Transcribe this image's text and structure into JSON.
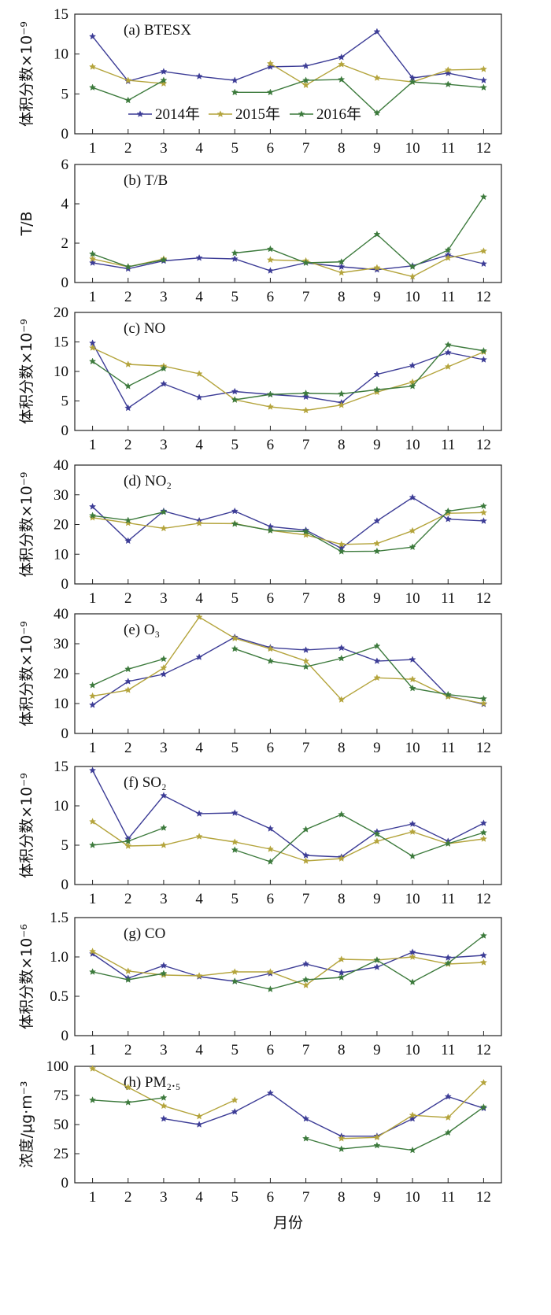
{
  "colors": {
    "2014": "#3c3c96",
    "2015": "#b4a43c",
    "2016": "#3c7a3c"
  },
  "legend": {
    "items": [
      {
        "key": "2014",
        "label": "2014年"
      },
      {
        "key": "2015",
        "label": "2015年"
      },
      {
        "key": "2016",
        "label": "2016年"
      }
    ]
  },
  "xlabel": "月份",
  "chart_data": [
    {
      "type": "line",
      "panel_label": "(a) BTESX",
      "ylabel": "体积分数×10⁻⁹",
      "ylim": [
        0,
        15
      ],
      "yticks": [
        0,
        5,
        10,
        15
      ],
      "x": [
        1,
        2,
        3,
        4,
        5,
        6,
        7,
        8,
        9,
        10,
        11,
        12
      ],
      "series": [
        {
          "name": "2014年",
          "key": "2014",
          "values": [
            12.2,
            6.6,
            7.8,
            7.2,
            6.7,
            8.4,
            8.5,
            9.6,
            12.8,
            7.0,
            7.6,
            6.7
          ]
        },
        {
          "name": "2015年",
          "key": "2015",
          "values": [
            8.4,
            6.7,
            6.3,
            null,
            null,
            8.8,
            6.1,
            8.7,
            7.0,
            6.5,
            8.0,
            8.1
          ]
        },
        {
          "name": "2016年",
          "key": "2016",
          "values": [
            5.8,
            4.2,
            6.7,
            null,
            5.2,
            5.2,
            6.7,
            6.8,
            2.6,
            6.5,
            6.2,
            5.8
          ]
        }
      ]
    },
    {
      "type": "line",
      "panel_label": "(b) T/B",
      "ylabel": "T/B",
      "ylim": [
        0,
        6
      ],
      "yticks": [
        0,
        2,
        4,
        6
      ],
      "x": [
        1,
        2,
        3,
        4,
        5,
        6,
        7,
        8,
        9,
        10,
        11,
        12
      ],
      "series": [
        {
          "name": "2014年",
          "key": "2014",
          "values": [
            1.0,
            0.7,
            1.1,
            1.25,
            1.2,
            0.6,
            1.0,
            0.8,
            0.65,
            0.85,
            1.4,
            0.95
          ]
        },
        {
          "name": "2015年",
          "key": "2015",
          "values": [
            1.2,
            0.8,
            1.2,
            null,
            null,
            1.15,
            1.1,
            0.5,
            0.75,
            0.3,
            1.25,
            1.6
          ]
        },
        {
          "name": "2016年",
          "key": "2016",
          "values": [
            1.45,
            0.8,
            1.15,
            null,
            1.5,
            1.7,
            1.0,
            1.05,
            2.45,
            0.8,
            1.65,
            4.35
          ]
        }
      ]
    },
    {
      "type": "line",
      "panel_label": "(c) NO",
      "ylabel": "体积分数×10⁻⁹",
      "ylim": [
        0,
        20
      ],
      "yticks": [
        0,
        5,
        10,
        15,
        20
      ],
      "x": [
        1,
        2,
        3,
        4,
        5,
        6,
        7,
        8,
        9,
        10,
        11,
        12
      ],
      "series": [
        {
          "name": "2014年",
          "key": "2014",
          "values": [
            14.8,
            3.8,
            7.9,
            5.6,
            6.6,
            6.1,
            5.7,
            4.7,
            9.5,
            11.0,
            13.2,
            12.0
          ]
        },
        {
          "name": "2015年",
          "key": "2015",
          "values": [
            14.0,
            11.2,
            10.9,
            9.6,
            5.2,
            4.0,
            3.4,
            4.3,
            6.5,
            8.2,
            10.8,
            13.3
          ]
        },
        {
          "name": "2016年",
          "key": "2016",
          "values": [
            11.7,
            7.5,
            10.5,
            null,
            5.2,
            6.1,
            6.3,
            6.2,
            6.9,
            7.5,
            14.5,
            13.5
          ]
        }
      ]
    },
    {
      "type": "line",
      "panel_label": "(d) NO₂",
      "ylabel": "体积分数×10⁻⁹",
      "ylim": [
        0,
        40
      ],
      "yticks": [
        0,
        10,
        20,
        30,
        40
      ],
      "x": [
        1,
        2,
        3,
        4,
        5,
        6,
        7,
        8,
        9,
        10,
        11,
        12
      ],
      "series": [
        {
          "name": "2014年",
          "key": "2014",
          "values": [
            26.0,
            14.5,
            24.5,
            21.3,
            24.5,
            19.3,
            18.1,
            12.0,
            21.2,
            29.1,
            21.8,
            21.2
          ]
        },
        {
          "name": "2015年",
          "key": "2015",
          "values": [
            22.3,
            20.5,
            18.7,
            20.4,
            20.3,
            18.0,
            16.5,
            13.3,
            13.6,
            17.9,
            23.8,
            24.0
          ]
        },
        {
          "name": "2016年",
          "key": "2016",
          "values": [
            23.0,
            21.4,
            24.2,
            null,
            20.2,
            18.0,
            17.6,
            10.9,
            11.0,
            12.4,
            24.5,
            26.2
          ]
        }
      ]
    },
    {
      "type": "line",
      "panel_label": "(e) O₃",
      "ylabel": "体积分数×10⁻⁹",
      "ylim": [
        0,
        40
      ],
      "yticks": [
        0,
        10,
        20,
        30,
        40
      ],
      "x": [
        1,
        2,
        3,
        4,
        5,
        6,
        7,
        8,
        9,
        10,
        11,
        12
      ],
      "series": [
        {
          "name": "2014年",
          "key": "2014",
          "values": [
            9.5,
            17.4,
            19.8,
            25.5,
            32.2,
            28.7,
            27.9,
            28.6,
            24.2,
            24.7,
            12.5,
            9.8
          ]
        },
        {
          "name": "2015年",
          "key": "2015",
          "values": [
            12.5,
            14.5,
            21.9,
            38.9,
            31.8,
            28.3,
            24.2,
            11.3,
            18.6,
            18.1,
            12.3,
            10.0
          ]
        },
        {
          "name": "2016年",
          "key": "2016",
          "values": [
            16.1,
            21.5,
            24.9,
            null,
            28.3,
            24.2,
            22.3,
            25.1,
            29.2,
            15.1,
            13.0,
            11.6
          ]
        }
      ]
    },
    {
      "type": "line",
      "panel_label": "(f) SO₂",
      "ylabel": "体积分数×10⁻⁹",
      "ylim": [
        0,
        15
      ],
      "yticks": [
        0,
        5,
        10,
        15
      ],
      "x": [
        1,
        2,
        3,
        4,
        5,
        6,
        7,
        8,
        9,
        10,
        11,
        12
      ],
      "series": [
        {
          "name": "2014年",
          "key": "2014",
          "values": [
            14.5,
            5.8,
            11.3,
            9.0,
            9.1,
            7.1,
            3.7,
            3.5,
            6.7,
            7.7,
            5.5,
            7.8
          ]
        },
        {
          "name": "2015年",
          "key": "2015",
          "values": [
            8.0,
            4.9,
            5.0,
            6.1,
            5.4,
            4.5,
            3.0,
            3.3,
            5.5,
            6.7,
            5.2,
            5.8
          ]
        },
        {
          "name": "2016年",
          "key": "2016",
          "values": [
            5.0,
            5.5,
            7.2,
            null,
            4.4,
            2.9,
            7.0,
            8.9,
            6.4,
            3.6,
            5.2,
            6.6
          ]
        }
      ]
    },
    {
      "type": "line",
      "panel_label": "(g) CO",
      "ylabel": "体积分数×10⁻⁶",
      "ylim": [
        0,
        1.5
      ],
      "yticks": [
        "0",
        "0.5",
        "1.0",
        "1.5"
      ],
      "x": [
        1,
        2,
        3,
        4,
        5,
        6,
        7,
        8,
        9,
        10,
        11,
        12
      ],
      "series": [
        {
          "name": "2014年",
          "key": "2014",
          "values": [
            1.04,
            0.73,
            0.89,
            0.75,
            0.69,
            0.79,
            0.91,
            0.8,
            0.87,
            1.06,
            0.99,
            1.02
          ]
        },
        {
          "name": "2015年",
          "key": "2015",
          "values": [
            1.07,
            0.82,
            0.77,
            0.76,
            0.81,
            0.81,
            0.64,
            0.97,
            0.96,
            1.0,
            0.91,
            0.93
          ]
        },
        {
          "name": "2016年",
          "key": "2016",
          "values": [
            0.81,
            0.71,
            0.79,
            null,
            0.69,
            0.59,
            0.71,
            0.74,
            0.96,
            0.68,
            0.92,
            1.27
          ]
        }
      ]
    },
    {
      "type": "line",
      "panel_label": "(h) PM₂.₅",
      "ylabel": "浓度/μg·m⁻³",
      "ylim": [
        0,
        100
      ],
      "yticks": [
        0,
        25,
        50,
        75,
        100
      ],
      "x": [
        1,
        2,
        3,
        4,
        5,
        6,
        7,
        8,
        9,
        10,
        11,
        12
      ],
      "series": [
        {
          "name": "2014年",
          "key": "2014",
          "values": [
            null,
            null,
            55,
            50,
            61,
            77,
            55,
            40,
            40,
            55,
            74,
            64
          ]
        },
        {
          "name": "2015年",
          "key": "2015",
          "values": [
            98,
            82,
            66,
            57,
            71,
            null,
            null,
            38,
            39,
            58,
            56,
            86
          ]
        },
        {
          "name": "2016年",
          "key": "2016",
          "values": [
            71,
            69,
            73,
            null,
            null,
            null,
            38,
            29,
            32,
            28,
            43,
            65
          ]
        }
      ]
    }
  ]
}
